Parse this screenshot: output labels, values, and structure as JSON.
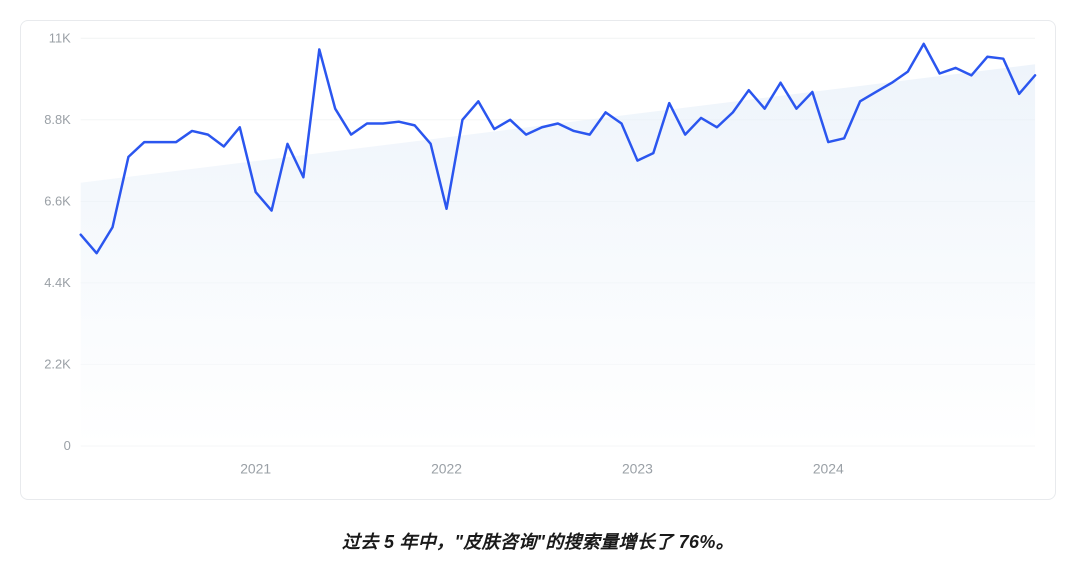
{
  "search_chart": {
    "type": "line",
    "line_color": "#2b56ef",
    "line_width": 2.5,
    "background_color": "#ffffff",
    "grid_color": "#f1f3f4",
    "axis_label_color": "#9aa0a6",
    "axis_label_fontsize": 13,
    "trend_area_gradient_top": "#e3edf8",
    "trend_area_gradient_bottom": "#ffffff",
    "ylim": [
      0,
      11000
    ],
    "y_ticks": [
      0,
      2200,
      4400,
      6600,
      8800,
      11000
    ],
    "y_tick_labels": [
      "0",
      "2.2K",
      "4.4K",
      "6.6K",
      "8.8K",
      "11K"
    ],
    "x_count": 61,
    "x_tick_positions": [
      11,
      23,
      35,
      47
    ],
    "x_tick_labels": [
      "2021",
      "2022",
      "2023",
      "2024"
    ],
    "trend_start_value": 7100,
    "trend_end_value": 10300,
    "values": [
      5700,
      5200,
      5900,
      7800,
      8200,
      8200,
      8200,
      8500,
      8400,
      8080,
      8600,
      6850,
      6350,
      8150,
      7250,
      10700,
      9100,
      8400,
      8700,
      8700,
      8750,
      8650,
      8150,
      6400,
      8800,
      9300,
      8550,
      8800,
      8400,
      8600,
      8700,
      8500,
      8400,
      9000,
      8700,
      7700,
      7900,
      9250,
      8400,
      8850,
      8600,
      9000,
      9600,
      9100,
      9800,
      9100,
      9550,
      8200,
      8300,
      9300,
      9550,
      9800,
      10100,
      10850,
      10050,
      10200,
      10000,
      10500,
      10450,
      9500,
      10000
    ]
  },
  "caption_text": "过去 5 年中，\"皮肤咨询\"的搜索量增长了 76%。"
}
